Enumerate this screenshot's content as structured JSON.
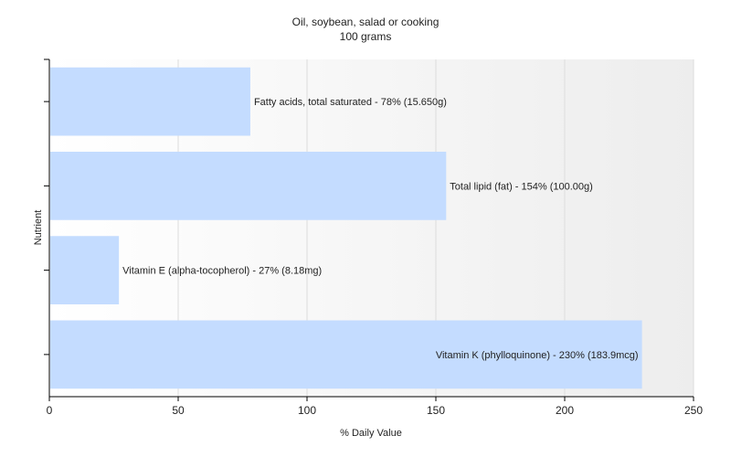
{
  "chart_data": {
    "type": "bar",
    "orientation": "horizontal",
    "title": "Oil, soybean, salad or cooking",
    "subtitle": "100 grams",
    "xlabel": "% Daily Value",
    "ylabel": "Nutrient",
    "xlim": [
      0,
      250
    ],
    "xticks": [
      0,
      50,
      100,
      150,
      200,
      250
    ],
    "grid": true,
    "bar_color": "#c4dcff",
    "categories": [
      "Fatty acids, total saturated",
      "Total lipid (fat)",
      "Vitamin E (alpha-tocopherol)",
      "Vitamin K (phylloquinone)"
    ],
    "values": [
      78,
      154,
      27,
      230
    ],
    "labels": [
      "Fatty acids, total saturated - 78% (15.650g)",
      "Total lipid (fat) - 154% (100.00g)",
      "Vitamin E (alpha-tocopherol) - 27% (8.18mg)",
      "Vitamin K (phylloquinone) - 230% (183.9mcg)"
    ]
  }
}
